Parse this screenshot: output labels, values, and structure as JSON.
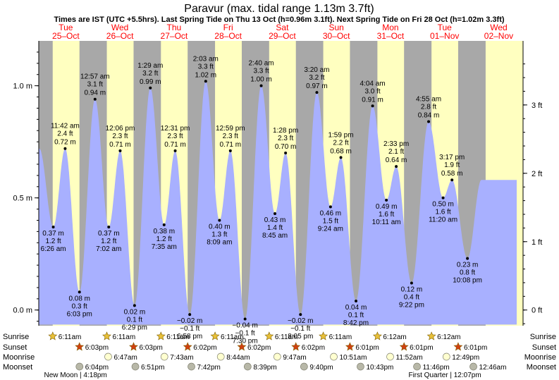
{
  "chart_data": {
    "type": "area",
    "title": "Paravur (max. tidal range 1.13m 3.7ft)",
    "subtitle": "Times are IST (UTC +5.5hrs). Last Spring Tide on Thu 13 Oct (h=0.96m 3.1ft). Next Spring Tide on Fri 28 Oct (h=1.02m 3.3ft)",
    "xlabel": "",
    "ylabel_left": "m",
    "ylabel_right": "ft",
    "ylim": [
      -0.07,
      1.2
    ],
    "y_ticks_m": [
      "0.0 m",
      "0.5 m",
      "1.0 m"
    ],
    "y_ticks_ft": [
      "0 ft",
      "1 ft",
      "2 ft",
      "3 ft"
    ],
    "days": [
      {
        "dow": "Tue",
        "date": "25–Oct",
        "weekend": false
      },
      {
        "dow": "Wed",
        "date": "26–Oct",
        "weekend": false
      },
      {
        "dow": "Thu",
        "date": "27–Oct",
        "weekend": false
      },
      {
        "dow": "Fri",
        "date": "28–Oct",
        "weekend": false
      },
      {
        "dow": "Sat",
        "date": "29–Oct",
        "weekend": true
      },
      {
        "dow": "Sun",
        "date": "30–Oct",
        "weekend": true
      },
      {
        "dow": "Mon",
        "date": "31–Oct",
        "weekend": false
      },
      {
        "dow": "Tue",
        "date": "01–Nov",
        "weekend": false
      },
      {
        "dow": "Wed",
        "date": "02–Nov",
        "weekend": false
      }
    ],
    "tides": [
      {
        "t": "2022-10-25 06:26",
        "h": 0.37,
        "ft": "1.2 ft",
        "time": "6:26 am",
        "type": "low"
      },
      {
        "t": "2022-10-25 11:42",
        "h": 0.72,
        "ft": "2.4 ft",
        "time": "11:42 am",
        "type": "high"
      },
      {
        "t": "2022-10-25 18:03",
        "h": 0.08,
        "ft": "0.3 ft",
        "time": "6:03 pm",
        "type": "low"
      },
      {
        "t": "2022-10-26 00:57",
        "h": 0.94,
        "ft": "3.1 ft",
        "time": "12:57 am",
        "type": "high"
      },
      {
        "t": "2022-10-26 07:02",
        "h": 0.37,
        "ft": "1.2 ft",
        "time": "7:02 am",
        "type": "low"
      },
      {
        "t": "2022-10-26 12:06",
        "h": 0.71,
        "ft": "2.3 ft",
        "time": "12:06 pm",
        "type": "high"
      },
      {
        "t": "2022-10-26 18:29",
        "h": 0.02,
        "ft": "0.1 ft",
        "time": "6:29 pm",
        "type": "low"
      },
      {
        "t": "2022-10-27 01:29",
        "h": 0.99,
        "ft": "3.2 ft",
        "time": "1:29 am",
        "type": "high"
      },
      {
        "t": "2022-10-27 07:35",
        "h": 0.38,
        "ft": "1.2 ft",
        "time": "7:35 am",
        "type": "low"
      },
      {
        "t": "2022-10-27 12:31",
        "h": 0.71,
        "ft": "2.3 ft",
        "time": "12:31 pm",
        "type": "high"
      },
      {
        "t": "2022-10-27 18:58",
        "h": -0.02,
        "ft": "−0.1 ft",
        "time": "6:58 pm",
        "type": "low"
      },
      {
        "t": "2022-10-28 02:03",
        "h": 1.02,
        "ft": "3.3 ft",
        "time": "2:03 am",
        "type": "high"
      },
      {
        "t": "2022-10-28 08:09",
        "h": 0.4,
        "ft": "1.3 ft",
        "time": "8:09 am",
        "type": "low"
      },
      {
        "t": "2022-10-28 12:59",
        "h": 0.71,
        "ft": "2.3 ft",
        "time": "12:59 pm",
        "type": "high"
      },
      {
        "t": "2022-10-28 19:30",
        "h": -0.04,
        "ft": "−0.1 ft",
        "time": "7:30 pm",
        "type": "low"
      },
      {
        "t": "2022-10-29 02:40",
        "h": 1.0,
        "ft": "3.3 ft",
        "time": "2:40 am",
        "type": "high"
      },
      {
        "t": "2022-10-29 08:45",
        "h": 0.43,
        "ft": "1.4 ft",
        "time": "8:45 am",
        "type": "low"
      },
      {
        "t": "2022-10-29 13:28",
        "h": 0.7,
        "ft": "2.3 ft",
        "time": "1:28 pm",
        "type": "high"
      },
      {
        "t": "2022-10-29 20:05",
        "h": -0.02,
        "ft": "−0.1 ft",
        "time": "8:05 pm",
        "type": "low"
      },
      {
        "t": "2022-10-30 03:20",
        "h": 0.97,
        "ft": "3.2 ft",
        "time": "3:20 am",
        "type": "high"
      },
      {
        "t": "2022-10-30 09:24",
        "h": 0.46,
        "ft": "1.5 ft",
        "time": "9:24 am",
        "type": "low"
      },
      {
        "t": "2022-10-30 13:59",
        "h": 0.68,
        "ft": "2.2 ft",
        "time": "1:59 pm",
        "type": "high"
      },
      {
        "t": "2022-10-30 20:42",
        "h": 0.04,
        "ft": "0.1 ft",
        "time": "8:42 pm",
        "type": "low"
      },
      {
        "t": "2022-10-31 04:04",
        "h": 0.91,
        "ft": "3.0 ft",
        "time": "4:04 am",
        "type": "high"
      },
      {
        "t": "2022-10-31 10:11",
        "h": 0.49,
        "ft": "1.6 ft",
        "time": "10:11 am",
        "type": "low"
      },
      {
        "t": "2022-10-31 14:33",
        "h": 0.64,
        "ft": "2.1 ft",
        "time": "2:33 pm",
        "type": "high"
      },
      {
        "t": "2022-10-31 21:22",
        "h": 0.12,
        "ft": "0.4 ft",
        "time": "9:22 pm",
        "type": "low"
      },
      {
        "t": "2022-11-01 04:55",
        "h": 0.84,
        "ft": "2.8 ft",
        "time": "4:55 am",
        "type": "high"
      },
      {
        "t": "2022-11-01 11:20",
        "h": 0.5,
        "ft": "1.6 ft",
        "time": "11:20 am",
        "type": "low"
      },
      {
        "t": "2022-11-01 15:17",
        "h": 0.58,
        "ft": "1.9 ft",
        "time": "3:17 pm",
        "type": "high"
      },
      {
        "t": "2022-11-01 22:08",
        "h": 0.23,
        "ft": "0.8 ft",
        "time": "10:08 pm",
        "type": "low"
      }
    ],
    "sunrise": [
      {
        "t": "2022-10-25 06:11",
        "label": "6:11am"
      },
      {
        "t": "2022-10-26 06:11",
        "label": "6:11am"
      },
      {
        "t": "2022-10-27 06:11",
        "label": "6:11am"
      },
      {
        "t": "2022-10-28 06:11",
        "label": "6:11am"
      },
      {
        "t": "2022-10-29 06:11",
        "label": "6:11am"
      },
      {
        "t": "2022-10-30 06:11",
        "label": "6:11am"
      },
      {
        "t": "2022-10-31 06:12",
        "label": "6:12am"
      },
      {
        "t": "2022-11-01 06:12",
        "label": "6:12am"
      }
    ],
    "sunset": [
      {
        "t": "2022-10-25 18:03",
        "label": "6:03pm"
      },
      {
        "t": "2022-10-26 18:03",
        "label": "6:03pm"
      },
      {
        "t": "2022-10-27 18:02",
        "label": "6:02pm"
      },
      {
        "t": "2022-10-28 18:02",
        "label": "6:02pm"
      },
      {
        "t": "2022-10-29 18:02",
        "label": "6:02pm"
      },
      {
        "t": "2022-10-30 18:01",
        "label": "6:01pm"
      },
      {
        "t": "2022-10-31 18:01",
        "label": "6:01pm"
      },
      {
        "t": "2022-11-01 18:01",
        "label": "6:01pm"
      }
    ],
    "moonrise": [
      {
        "t": "2022-10-26 06:47",
        "label": "6:47am"
      },
      {
        "t": "2022-10-27 07:43",
        "label": "7:43am"
      },
      {
        "t": "2022-10-28 08:44",
        "label": "8:44am"
      },
      {
        "t": "2022-10-29 09:47",
        "label": "9:47am"
      },
      {
        "t": "2022-10-30 10:51",
        "label": "10:51am"
      },
      {
        "t": "2022-10-31 11:52",
        "label": "11:52am"
      },
      {
        "t": "2022-11-01 12:49",
        "label": "12:49pm"
      }
    ],
    "moonset": [
      {
        "t": "2022-10-25 18:04",
        "label": "6:04pm"
      },
      {
        "t": "2022-10-26 18:51",
        "label": "6:51pm"
      },
      {
        "t": "2022-10-27 19:42",
        "label": "7:42pm"
      },
      {
        "t": "2022-10-28 20:39",
        "label": "8:39pm"
      },
      {
        "t": "2022-10-29 21:40",
        "label": "9:40pm"
      },
      {
        "t": "2022-10-30 22:43",
        "label": "10:43pm"
      },
      {
        "t": "2022-10-31 23:46",
        "label": "11:46pm"
      },
      {
        "t": "2022-11-02 00:46",
        "label": "12:46am"
      }
    ],
    "row_labels": [
      "Sunrise",
      "Sunset",
      "Moonrise",
      "Moonset"
    ],
    "moon_phases": [
      {
        "t": "2022-10-25 16:18",
        "label": "New Moon | 4:18pm"
      },
      {
        "t": "2022-11-01 12:07",
        "label": "First Quarter | 12:07pm"
      }
    ],
    "colors": {
      "night": "#a8a8a8",
      "day": "#ffffc0",
      "water": "#a8b0ff",
      "day_label": "#ff0000",
      "sun": "#e8c038",
      "sunset": "#d04010",
      "moonrise": "#ffffd0",
      "moonset": "#b8b8a8"
    },
    "grid": false,
    "legend": "none"
  }
}
